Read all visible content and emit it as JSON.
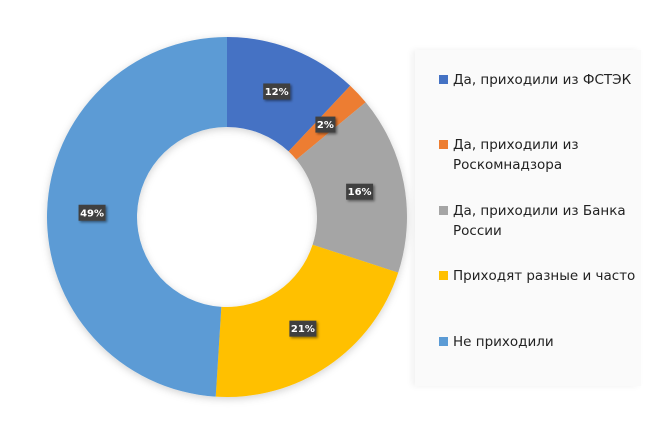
{
  "chart_data": {
    "type": "pie",
    "subtype": "doughnut",
    "title": "",
    "categories": [
      "Да, приходили из ФСТЭК",
      "Да, приходили из Роскомнадзора",
      "Да, приходили из Банка России",
      "Приходят разные и часто",
      "Не приходили"
    ],
    "values": [
      12,
      2,
      16,
      21,
      49
    ],
    "value_labels": [
      "12%",
      "2%",
      "16%",
      "21%",
      "49%"
    ],
    "colors": [
      "#4472c4",
      "#ed7d31",
      "#a5a5a5",
      "#ffc000",
      "#5b9bd5"
    ],
    "legend_position": "right",
    "start_angle_deg": 0,
    "direction": "clockwise"
  },
  "legend": {
    "items": [
      {
        "lines": [
          "Да, приходили из ФСТЭК"
        ],
        "color": "#4472c4"
      },
      {
        "lines": [
          "Да, приходили из",
          "Роскомнадзора"
        ],
        "color": "#ed7d31"
      },
      {
        "lines": [
          "Да, приходили из Банка",
          "России"
        ],
        "color": "#a5a5a5"
      },
      {
        "lines": [
          "Приходят разные и часто"
        ],
        "color": "#ffc000"
      },
      {
        "lines": [
          "Не приходили"
        ],
        "color": "#5b9bd5"
      }
    ]
  }
}
